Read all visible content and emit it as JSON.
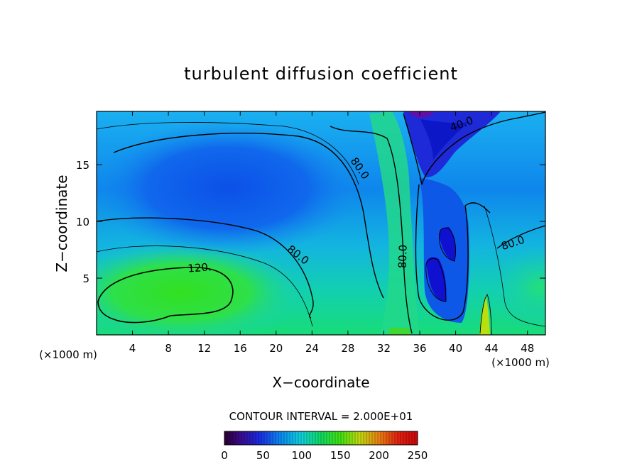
{
  "chart_data": {
    "type": "heatmap",
    "title": "turbulent diffusion coefficient",
    "xlabel": "X−coordinate",
    "ylabel": "Z−coordinate",
    "x_unit": "(×1000 m)",
    "y_unit": "(×1000 m)",
    "xlim": [
      0,
      50
    ],
    "ylim": [
      0,
      19.7
    ],
    "x_ticks": [
      "4",
      "8",
      "12",
      "16",
      "20",
      "24",
      "28",
      "32",
      "36",
      "40",
      "44",
      "48"
    ],
    "y_ticks": [
      "5",
      "10",
      "15"
    ],
    "contour_labels": [
      {
        "text": "120.",
        "x": 11.5,
        "z": 5.6
      },
      {
        "text": "80.0",
        "x": 22.2,
        "z": 6.8
      },
      {
        "text": "80.0",
        "x": 29.0,
        "z": 14.5
      },
      {
        "text": "80.0",
        "x": 34.5,
        "z": 6.9
      },
      {
        "text": "40.0",
        "x": 40.8,
        "z": 18.3
      },
      {
        "text": "80.0",
        "x": 46.5,
        "z": 7.8
      }
    ],
    "contour_interval_label": "CONTOUR INTERVAL = 2.000E+01",
    "colorbar": {
      "min": 0,
      "max": 250,
      "ticks": [
        "0",
        "50",
        "100",
        "150",
        "200",
        "250"
      ]
    },
    "grid": false,
    "legend": "colorbar-bottom"
  },
  "colors": {
    "background": "#ffffff",
    "contour": "#000000"
  }
}
